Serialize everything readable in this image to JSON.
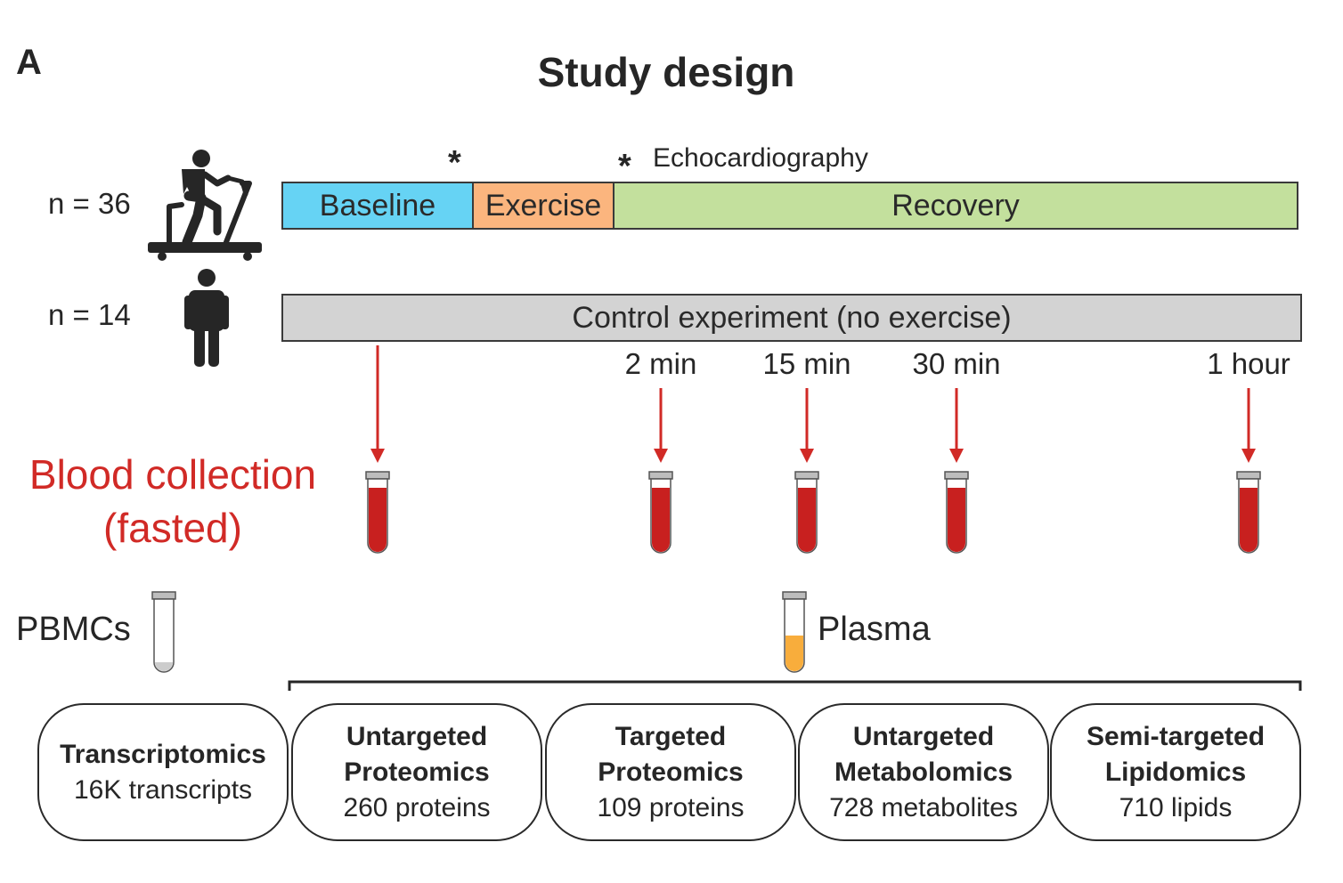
{
  "panel_label": "A",
  "title": "Study design",
  "cohorts": {
    "exercise_n": "n = 36",
    "control_n": "n = 14"
  },
  "echo_marker": "*",
  "echo_label": "Echocardiography",
  "timeline": {
    "baseline": "Baseline",
    "exercise": "Exercise",
    "recovery": "Recovery",
    "control": "Control experiment (no exercise)"
  },
  "timepoints": [
    "2 min",
    "15 min",
    "30 min",
    "1 hour"
  ],
  "blood_collection": {
    "line1": "Blood collection",
    "line2": "(fasted)"
  },
  "samples": {
    "pbmc": "PBMCs",
    "plasma": "Plasma"
  },
  "omics": [
    {
      "line1": "Transcriptomics",
      "line2": "",
      "count": "16K transcripts"
    },
    {
      "line1": "Untargeted",
      "line2": "Proteomics",
      "count": "260 proteins"
    },
    {
      "line1": "Targeted",
      "line2": "Proteomics",
      "count": "109 proteins"
    },
    {
      "line1": "Untargeted",
      "line2": "Metabolomics",
      "count": "728 metabolites"
    },
    {
      "line1": "Semi-targeted",
      "line2": "Lipidomics",
      "count": "710 lipids"
    }
  ],
  "colors": {
    "baseline": "#66d3f4",
    "exercise": "#fbb57e",
    "recovery": "#c3e09d",
    "control": "#d3d3d3",
    "blood": "#d12a26",
    "plasma": "#f8ad3c"
  },
  "icons": [
    "treadmill-runner-icon",
    "standing-person-icon",
    "blood-tube-icon",
    "empty-tube-icon",
    "plasma-tube-icon"
  ]
}
